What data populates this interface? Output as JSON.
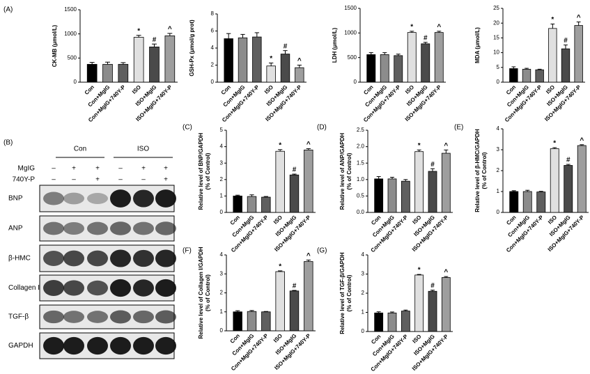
{
  "chart_data": [
    {
      "type": "bar",
      "panel_label": "(A)",
      "ylabel": "CK-MB (μmol/L)",
      "categories": [
        "Con",
        "Con+MgIG",
        "Con+MgIG+740Y-P",
        "ISO",
        "ISO+MgIG",
        "ISO+MgIG+740Y-P"
      ],
      "colors": [
        "#000000",
        "#8c8c8c",
        "#5f5f5f",
        "#e0e0e0",
        "#4a4a4a",
        "#9e9e9e"
      ],
      "values": [
        370,
        370,
        370,
        930,
        730,
        960
      ],
      "errors": [
        40,
        45,
        35,
        40,
        60,
        50
      ],
      "markers": [
        null,
        null,
        null,
        "*",
        "#",
        "^"
      ],
      "ylim": [
        0,
        1500
      ],
      "yticks": [
        0,
        500,
        1000,
        1500
      ]
    },
    {
      "type": "bar",
      "ylabel": "GSH-Px (μmol/g prot)",
      "categories": [
        "Con",
        "Con+MgIG",
        "Con+MgIG+740Y-P",
        "ISO",
        "ISO+MgIG",
        "ISO+MgIG+740Y-P"
      ],
      "colors": [
        "#000000",
        "#8c8c8c",
        "#5f5f5f",
        "#e0e0e0",
        "#4a4a4a",
        "#9e9e9e"
      ],
      "values": [
        5.1,
        5.2,
        5.3,
        1.9,
        3.3,
        1.7
      ],
      "errors": [
        0.6,
        0.4,
        0.5,
        0.35,
        0.4,
        0.3
      ],
      "markers": [
        null,
        null,
        null,
        "*",
        "#",
        "^"
      ],
      "ylim": [
        0,
        8
      ],
      "yticks": [
        0,
        2,
        4,
        6,
        8
      ]
    },
    {
      "type": "bar",
      "ylabel": "LDH (μmol/L)",
      "categories": [
        "Con",
        "Con+MgIG",
        "Con+MgIG+740Y-P",
        "ISO",
        "ISO+MgIG",
        "ISO+MgIG+740Y-P"
      ],
      "colors": [
        "#000000",
        "#8c8c8c",
        "#5f5f5f",
        "#e0e0e0",
        "#4a4a4a",
        "#9e9e9e"
      ],
      "values": [
        560,
        560,
        540,
        1010,
        780,
        1010
      ],
      "errors": [
        40,
        40,
        30,
        25,
        30,
        25
      ],
      "markers": [
        null,
        null,
        null,
        "*",
        "#",
        "^"
      ],
      "ylim": [
        0,
        1500
      ],
      "yticks": [
        0,
        500,
        1000,
        1500
      ]
    },
    {
      "type": "bar",
      "ylabel": "MDA (μmol/L)",
      "categories": [
        "Con",
        "Con+MgIG",
        "Con+MgIG+740Y-P",
        "ISO",
        "ISO+MgIG",
        "ISO+MgIG+740Y-P"
      ],
      "colors": [
        "#000000",
        "#8c8c8c",
        "#5f5f5f",
        "#e0e0e0",
        "#4a4a4a",
        "#9e9e9e"
      ],
      "values": [
        4.6,
        4.4,
        4.2,
        18.2,
        11.3,
        19.2
      ],
      "errors": [
        0.6,
        0.3,
        0.2,
        1.5,
        1.3,
        1.2
      ],
      "markers": [
        null,
        null,
        null,
        "*",
        "#",
        "^"
      ],
      "ylim": [
        0,
        25
      ],
      "yticks": [
        0,
        5,
        10,
        15,
        20,
        25
      ]
    },
    {
      "type": "bar",
      "panel_label": "(C)",
      "ylabel": "Relative level of BNP/GAPDH",
      "ylabel2": "(% of Control)",
      "categories": [
        "Con",
        "Con+MgIG",
        "Con+MgIG+740Y-P",
        "ISO",
        "ISO+MgIG",
        "ISO+MgIG+740Y-P"
      ],
      "colors": [
        "#000000",
        "#8c8c8c",
        "#5f5f5f",
        "#e0e0e0",
        "#4a4a4a",
        "#9e9e9e"
      ],
      "values": [
        1,
        0.97,
        0.93,
        3.72,
        2.28,
        3.8
      ],
      "errors": [
        0.05,
        0.1,
        0.04,
        0.1,
        0.05,
        0.08
      ],
      "markers": [
        null,
        null,
        null,
        "*",
        "#",
        "^"
      ],
      "ylim": [
        0,
        5
      ],
      "yticks": [
        0,
        1,
        2,
        3,
        4,
        5
      ]
    },
    {
      "type": "bar",
      "panel_label": "(D)",
      "ylabel": "Relative level of ANP/GAPDH",
      "ylabel2": "(% of Control)",
      "categories": [
        "Con",
        "Con+MgIG",
        "Con+MgIG+740Y-P",
        "ISO",
        "ISO+MgIG",
        "ISO+MgIG+740Y-P"
      ],
      "colors": [
        "#000000",
        "#8c8c8c",
        "#5f5f5f",
        "#e0e0e0",
        "#4a4a4a",
        "#9e9e9e"
      ],
      "values": [
        1.02,
        1.02,
        0.95,
        1.85,
        1.25,
        1.8
      ],
      "errors": [
        0.07,
        0.05,
        0.05,
        0.05,
        0.08,
        0.1
      ],
      "markers": [
        null,
        null,
        null,
        "*",
        "#",
        "^"
      ],
      "ylim": [
        0,
        2.5
      ],
      "yticks": [
        {
          "value": 0,
          "label": "0.0"
        },
        0.5,
        {
          "value": 1,
          "label": "1.0"
        },
        1.5,
        {
          "value": 2,
          "label": "2.0"
        },
        2.5
      ]
    },
    {
      "type": "bar",
      "panel_label": "(E)",
      "ylabel": "Relative level of β-HMC/GAPDH",
      "ylabel2": "(% of Control)",
      "categories": [
        "Con",
        "Con+MgIG",
        "Con+MgIG+740Y-P",
        "ISO",
        "ISO+MgIG",
        "ISO+MgIG+740Y-P"
      ],
      "colors": [
        "#000000",
        "#8c8c8c",
        "#5f5f5f",
        "#e0e0e0",
        "#4a4a4a",
        "#9e9e9e"
      ],
      "values": [
        1,
        1,
        0.98,
        3.05,
        2.25,
        3.2
      ],
      "errors": [
        0.04,
        0.06,
        0.03,
        0.05,
        0.05,
        0.04
      ],
      "markers": [
        null,
        null,
        null,
        "*",
        "#",
        "^"
      ],
      "ylim": [
        0,
        4
      ],
      "yticks": [
        0,
        1,
        2,
        3,
        4
      ]
    },
    {
      "type": "bar",
      "panel_label": "(F)",
      "ylabel": "Relative level of Collagen I/GAPDH",
      "ylabel2": "(% of Control)",
      "categories": [
        "Con",
        "Con+MgIG",
        "Con+MgIG+740Y-P",
        "ISO",
        "ISO+MgIG",
        "ISO+MgIG+740Y-P"
      ],
      "colors": [
        "#000000",
        "#8c8c8c",
        "#5f5f5f",
        "#e0e0e0",
        "#4a4a4a",
        "#9e9e9e"
      ],
      "values": [
        1,
        1.02,
        1,
        3.12,
        2.1,
        3.65
      ],
      "errors": [
        0.06,
        0.05,
        0.02,
        0.04,
        0.03,
        0.08
      ],
      "markers": [
        null,
        null,
        null,
        "*",
        "#",
        "^"
      ],
      "ylim": [
        0,
        4
      ],
      "yticks": [
        0,
        1,
        2,
        3,
        4
      ]
    },
    {
      "type": "bar",
      "panel_label": "(G)",
      "ylabel": "Relative level of TGF-β/GAPDH",
      "ylabel2": "(% of Control)",
      "categories": [
        "Con",
        "Con+MgIG",
        "Con+MgIG+740Y-P",
        "ISO",
        "ISO+MgIG",
        "ISO+MgIG+740Y-P"
      ],
      "colors": [
        "#000000",
        "#8c8c8c",
        "#5f5f5f",
        "#e0e0e0",
        "#4a4a4a",
        "#9e9e9e"
      ],
      "values": [
        0.97,
        0.97,
        1.07,
        2.95,
        2.1,
        2.82
      ],
      "errors": [
        0.06,
        0.05,
        0.05,
        0.03,
        0.06,
        0.05
      ],
      "markers": [
        null,
        null,
        null,
        "*",
        "#",
        "^"
      ],
      "ylim": [
        0,
        4
      ],
      "yticks": [
        0,
        1,
        2,
        3,
        4
      ]
    }
  ],
  "blot": {
    "panel_label": "(B)",
    "groups": [
      "Con",
      "ISO"
    ],
    "treatments": [
      {
        "name": "MgIG",
        "signs": [
          "–",
          "+",
          "+",
          "–",
          "+",
          "+"
        ]
      },
      {
        "name": "740Y-P",
        "signs": [
          "–",
          "–",
          "+",
          "–",
          "–",
          "+"
        ]
      }
    ],
    "proteins": [
      "BNP",
      "ANP",
      "β-HMC",
      "Collagen I",
      "TGF-β",
      "GAPDH"
    ]
  }
}
